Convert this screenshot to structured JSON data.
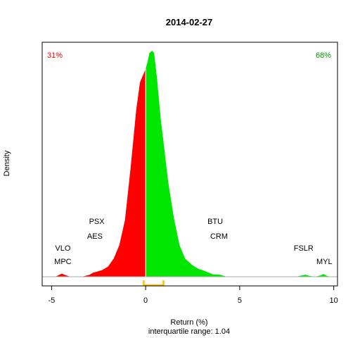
{
  "chart_data": {
    "type": "area",
    "title": "2014-02-27",
    "xlabel": "Return (%)",
    "ylabel": "Density",
    "subtitle": "interquartile range: 1.04",
    "xlim": [
      -5.5,
      10.2
    ],
    "ylim": [
      0,
      1.0
    ],
    "x_ticks": [
      -5,
      0,
      5,
      10
    ],
    "x_tick_labels": [
      "-5",
      "0",
      "5",
      "10"
    ],
    "split_at": 0,
    "negative_share_label": "31%",
    "positive_share_label": "68%",
    "negative_color": "#ff0000",
    "positive_color": "#00e600",
    "iqr_color": "#ffc000",
    "iqr_bracket": [
      -0.1,
      0.95
    ],
    "density": {
      "x": [
        -5.5,
        -4.8,
        -4.6,
        -4.45,
        -4.3,
        -4.0,
        -3.4,
        -3.0,
        -2.8,
        -2.6,
        -2.3,
        -2.0,
        -1.7,
        -1.4,
        -1.1,
        -0.8,
        -0.5,
        -0.3,
        -0.1,
        0.0,
        0.1,
        0.2,
        0.35,
        0.45,
        0.6,
        0.8,
        1.0,
        1.2,
        1.5,
        1.8,
        2.1,
        2.5,
        2.8,
        3.0,
        3.3,
        3.6,
        3.8,
        4.0,
        4.3,
        5.0,
        6.0,
        7.0,
        8.0,
        8.3,
        8.5,
        8.7,
        9.0,
        9.3,
        9.45,
        9.6,
        9.8,
        10.2
      ],
      "y": [
        0.0,
        0.0,
        0.008,
        0.014,
        0.008,
        0.0,
        0.0,
        0.008,
        0.018,
        0.022,
        0.03,
        0.045,
        0.08,
        0.14,
        0.25,
        0.48,
        0.74,
        0.86,
        0.9,
        0.92,
        0.95,
        0.99,
        1.0,
        0.99,
        0.88,
        0.7,
        0.56,
        0.42,
        0.26,
        0.14,
        0.08,
        0.05,
        0.035,
        0.03,
        0.02,
        0.01,
        0.01,
        0.008,
        0.0,
        0.0,
        0.0,
        0.0,
        0.0,
        0.006,
        0.009,
        0.004,
        0.0,
        0.006,
        0.012,
        0.005,
        0.0,
        0.0
      ]
    },
    "annotations": [
      {
        "text": "VLO",
        "x": -4.4,
        "y": 0.116
      },
      {
        "text": "MPC",
        "x": -4.4,
        "y": 0.056
      },
      {
        "text": "PSX",
        "x": -2.6,
        "y": 0.234
      },
      {
        "text": "AES",
        "x": -2.7,
        "y": 0.169
      },
      {
        "text": "BTU",
        "x": 3.7,
        "y": 0.234
      },
      {
        "text": "CRM",
        "x": 3.9,
        "y": 0.169
      },
      {
        "text": "FSLR",
        "x": 8.4,
        "y": 0.116
      },
      {
        "text": "MYL",
        "x": 9.5,
        "y": 0.056
      }
    ]
  }
}
